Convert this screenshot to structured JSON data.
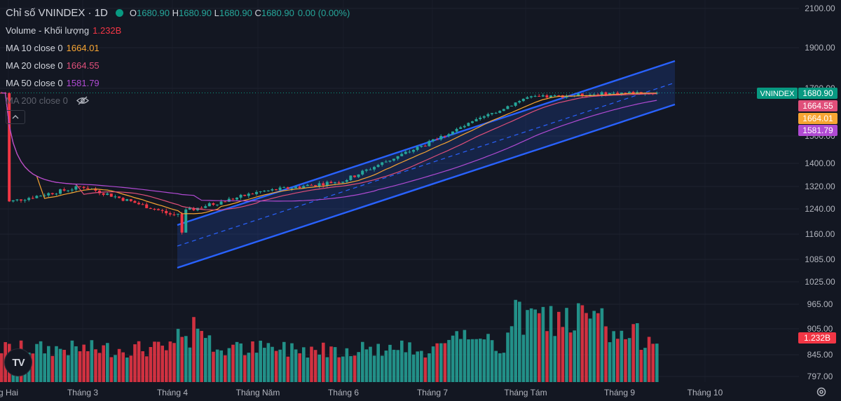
{
  "header": {
    "symbol_title": "Chỉ số VNINDEX · 1D",
    "ohlc": [
      {
        "key": "O",
        "value": "1680.90"
      },
      {
        "key": "H",
        "value": "1680.90"
      },
      {
        "key": "L",
        "value": "1680.90"
      },
      {
        "key": "C",
        "value": "1680.90"
      }
    ],
    "change": "0.00 (0.00%)"
  },
  "indicators": [
    {
      "label": "Volume - Khối lượng",
      "value": "1.232B",
      "color": "#f23645"
    },
    {
      "label": "MA 10 close 0",
      "value": "1664.01",
      "color": "#f7a533"
    },
    {
      "label": "MA 20 close 0",
      "value": "1664.55",
      "color": "#e04f7a"
    },
    {
      "label": "MA 50 close 0",
      "value": "1581.79",
      "color": "#b04ad3"
    },
    {
      "label": "MA 200 close 0",
      "value": "",
      "color": "#5d606b",
      "hidden": true
    }
  ],
  "colors": {
    "up": "#26a69a",
    "down": "#f23645",
    "channel": "#2962ff",
    "background": "#131722"
  },
  "chart_data": {
    "type": "candlestick",
    "symbol": "VNINDEX",
    "price_axis_ticks": [
      "2100.00",
      "1900.00",
      "1700.00",
      "1500.00",
      "1400.00",
      "1320.00",
      "1240.00",
      "1160.00",
      "1085.00",
      "1025.00",
      "965.00",
      "905.00",
      "845.00",
      "797.00"
    ],
    "time_axis_labels": [
      "g Hai",
      "Tháng 3",
      "Tháng 4",
      "Tháng Năm",
      "Tháng 6",
      "Tháng 7",
      "Tháng Tám",
      "Tháng 9",
      "Tháng 10"
    ],
    "price_tags": [
      {
        "label": "VNINDEX",
        "value": "1680.90",
        "color": "#089981"
      },
      {
        "label": "",
        "value": "1664.55",
        "color": "#e04f7a"
      },
      {
        "label": "",
        "value": "1664.01",
        "color": "#f7a533"
      },
      {
        "label": "",
        "value": "1581.79",
        "color": "#b04ad3"
      }
    ],
    "volume_tag": {
      "value": "1.232B",
      "color": "#f23645"
    },
    "last_close": 1680.9,
    "approx_close_by_month": [
      {
        "month": "Tháng 2",
        "close": 1265
      },
      {
        "month": "Tháng 3",
        "close": 1320
      },
      {
        "month": "Tháng 4",
        "close": 1220
      },
      {
        "month": "Tháng Năm",
        "close": 1300
      },
      {
        "month": "Tháng 6",
        "close": 1340
      },
      {
        "month": "Tháng 7",
        "close": 1480
      },
      {
        "month": "Tháng Tám",
        "close": 1660
      },
      {
        "month": "Tháng 9",
        "close": 1680.9
      }
    ],
    "channel": {
      "type": "parallel-channel",
      "start_month": "Tháng 4",
      "end_month": "Tháng 9"
    }
  }
}
